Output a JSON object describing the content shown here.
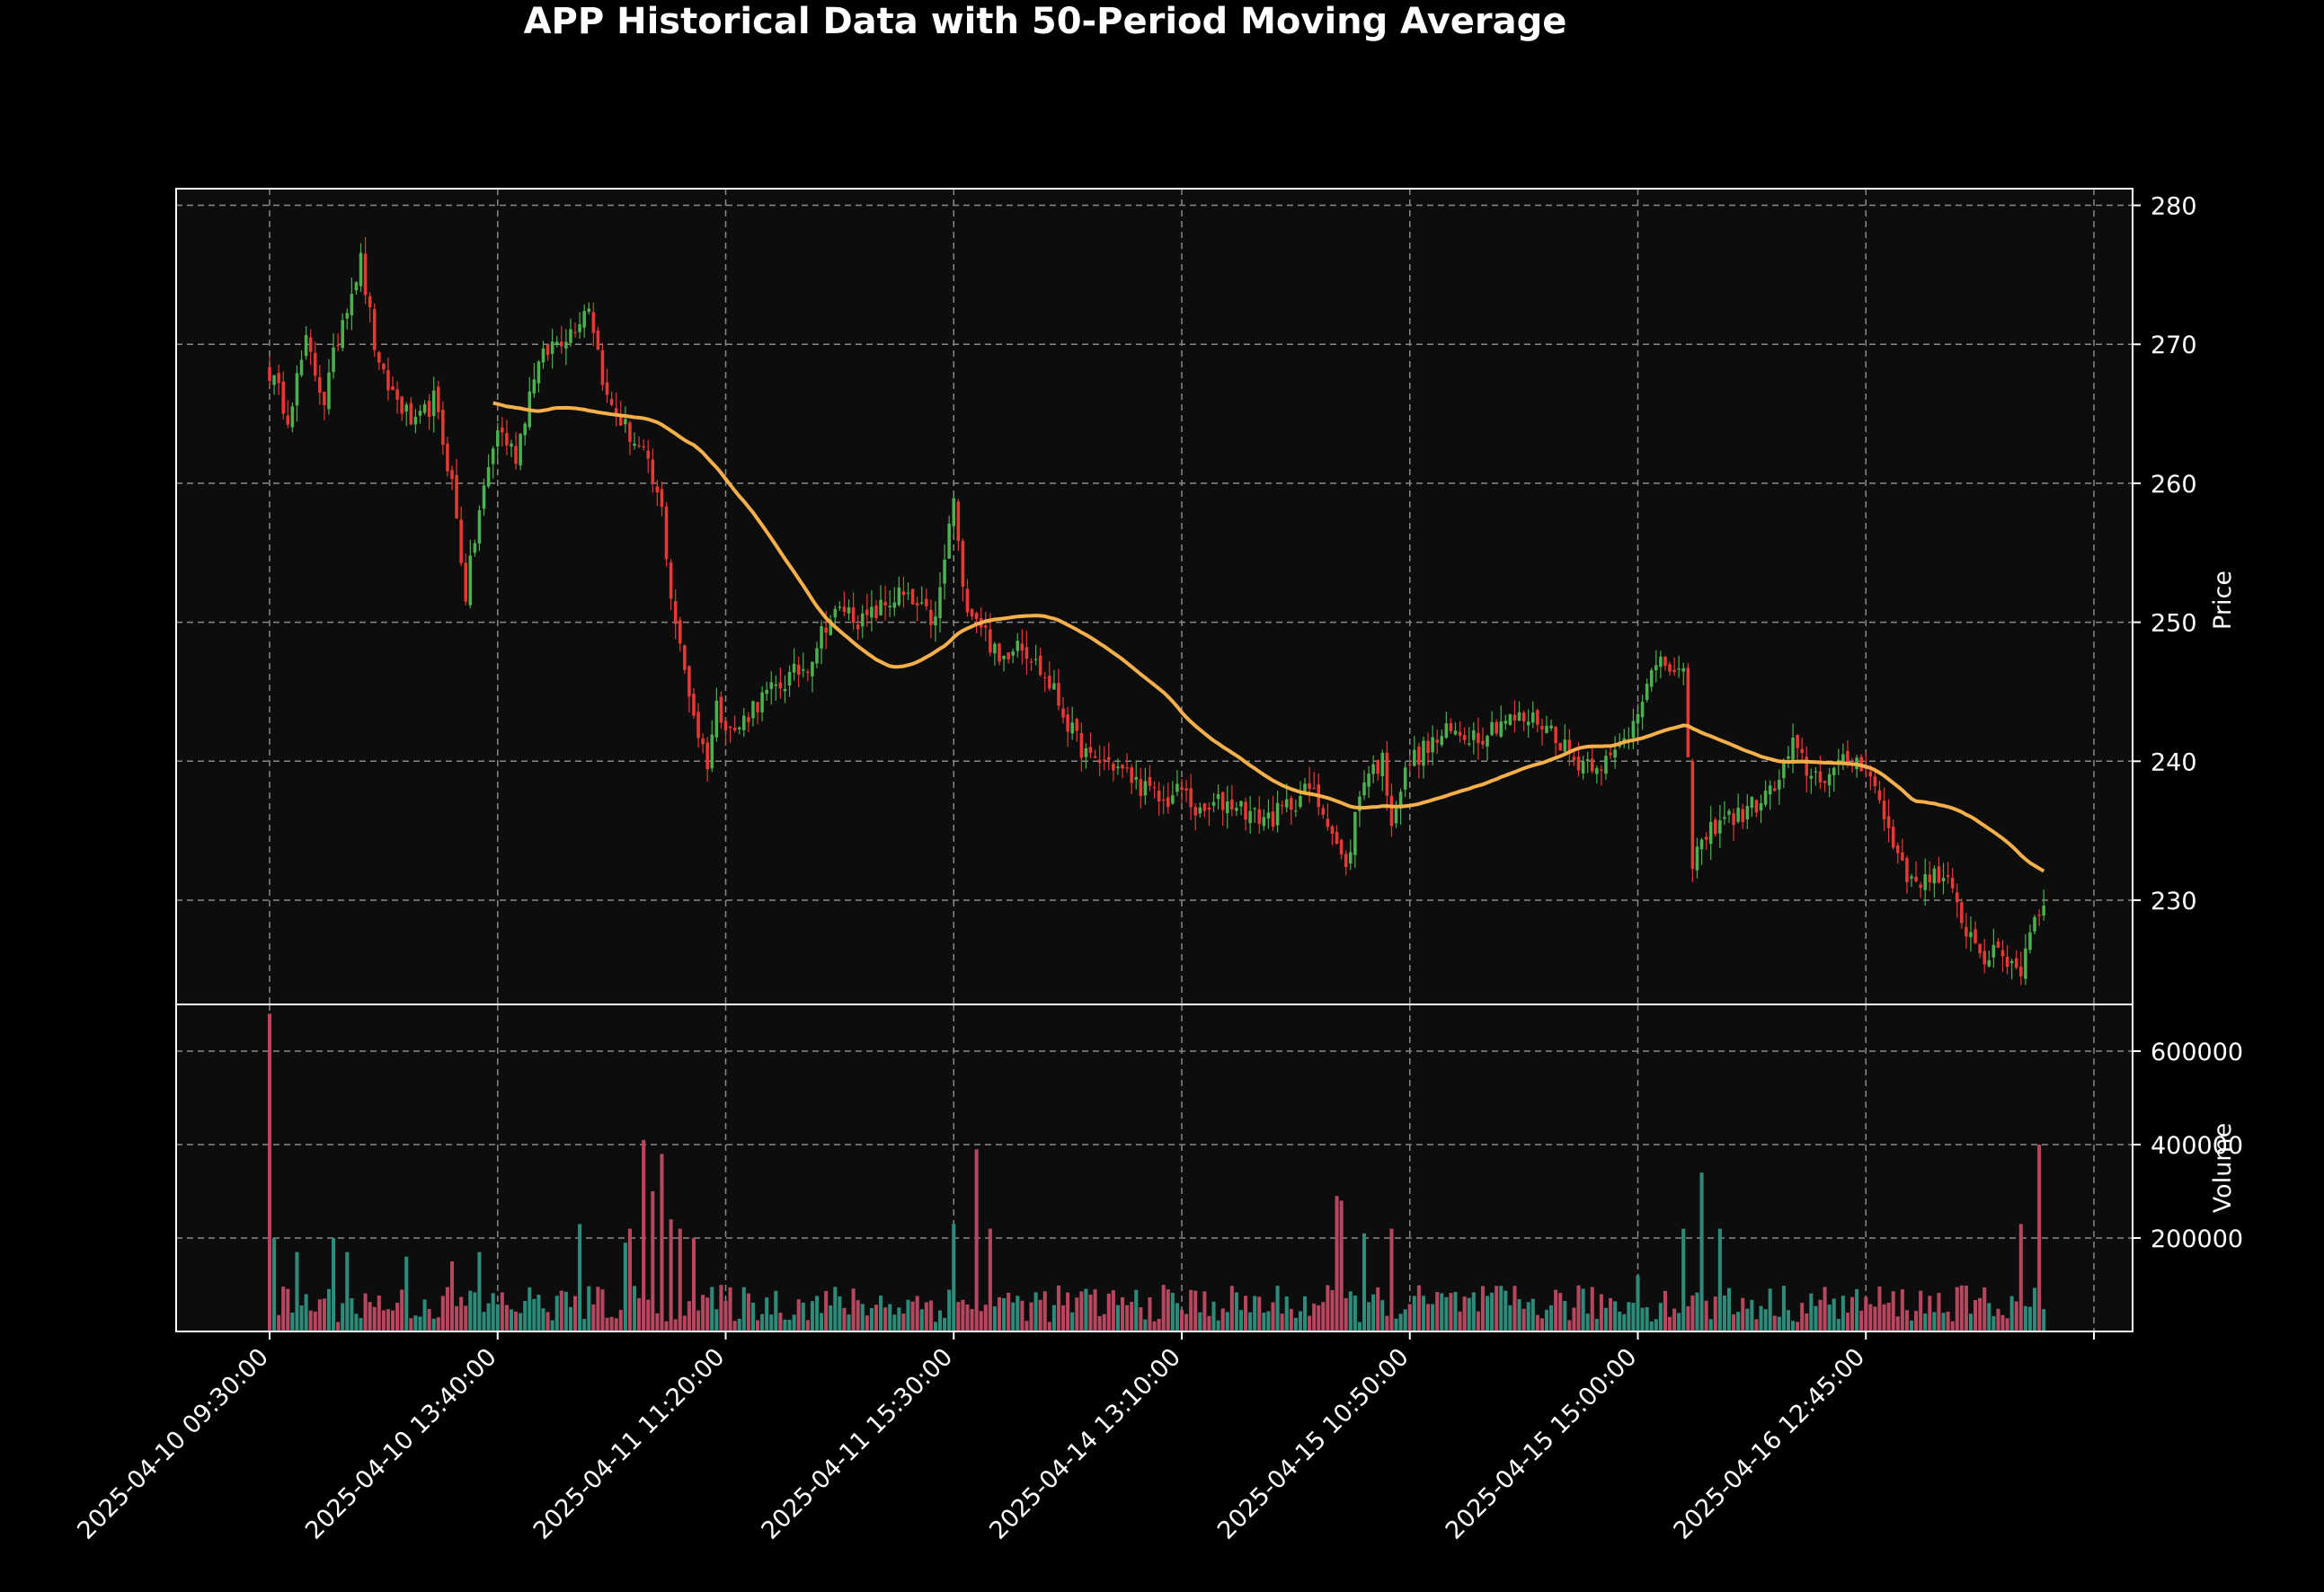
{
  "colors": {
    "background": "#000000",
    "panel": "#0d0d0d",
    "grid": "#888888",
    "axis": "#ffffff",
    "up": "#4caf50",
    "down": "#e53935",
    "ma": "#f5b04b",
    "volume_up": "#2e8b7a",
    "volume_down": "#b5485e"
  },
  "chart_data": {
    "type": "candlestick",
    "title": "APP Historical Data with 50-Period Moving Average",
    "price_panel": {
      "ylabel": "Price",
      "ylim": [
        222.5,
        281.2
      ],
      "yticks": [
        230,
        240,
        250,
        260,
        270,
        280
      ],
      "grid": true
    },
    "volume_panel": {
      "ylabel": "Volume",
      "ylim": [
        0,
        700000
      ],
      "yticks": [
        200000,
        400000,
        600000
      ],
      "tick_labels": [
        "200000",
        "400000",
        "600000"
      ],
      "grid": true
    },
    "x_tick_labels": [
      "2025-04-10 09:30:00",
      "2025-04-10 13:40:00",
      "2025-04-11 11:20:00",
      "2025-04-11 15:30:00",
      "2025-04-14 13:10:00",
      "2025-04-15 10:50:00",
      "2025-04-15 15:00:00",
      "2025-04-16 12:45:00"
    ],
    "x_tick_bar_index": [
      0,
      50,
      100,
      150,
      200,
      250,
      300,
      350
    ],
    "bar_count": 390,
    "close_anchors": [
      [
        0,
        268
      ],
      [
        4,
        265
      ],
      [
        8,
        270
      ],
      [
        12,
        266
      ],
      [
        16,
        272
      ],
      [
        20,
        276
      ],
      [
        24,
        268
      ],
      [
        28,
        266
      ],
      [
        32,
        264
      ],
      [
        36,
        266
      ],
      [
        40,
        260
      ],
      [
        43,
        252
      ],
      [
        46,
        258
      ],
      [
        50,
        264
      ],
      [
        54,
        262
      ],
      [
        58,
        268
      ],
      [
        62,
        270
      ],
      [
        66,
        271
      ],
      [
        70,
        273
      ],
      [
        74,
        266
      ],
      [
        78,
        264
      ],
      [
        82,
        262
      ],
      [
        86,
        258
      ],
      [
        88,
        252
      ],
      [
        90,
        248
      ],
      [
        94,
        242
      ],
      [
        96,
        240
      ],
      [
        98,
        244
      ],
      [
        102,
        242
      ],
      [
        106,
        244
      ],
      [
        110,
        245
      ],
      [
        114,
        246
      ],
      [
        118,
        247
      ],
      [
        122,
        250
      ],
      [
        126,
        251
      ],
      [
        130,
        250
      ],
      [
        134,
        251
      ],
      [
        138,
        252
      ],
      [
        142,
        251
      ],
      [
        146,
        250
      ],
      [
        150,
        259
      ],
      [
        152,
        252
      ],
      [
        156,
        250
      ],
      [
        160,
        247
      ],
      [
        164,
        249
      ],
      [
        168,
        247
      ],
      [
        172,
        245
      ],
      [
        176,
        242
      ],
      [
        180,
        240
      ],
      [
        184,
        240
      ],
      [
        188,
        239
      ],
      [
        192,
        238
      ],
      [
        196,
        237
      ],
      [
        200,
        238
      ],
      [
        204,
        236
      ],
      [
        208,
        237
      ],
      [
        212,
        237
      ],
      [
        216,
        236
      ],
      [
        220,
        236
      ],
      [
        224,
        237
      ],
      [
        228,
        238
      ],
      [
        232,
        236
      ],
      [
        236,
        232
      ],
      [
        238,
        236
      ],
      [
        240,
        239
      ],
      [
        244,
        240
      ],
      [
        246,
        236
      ],
      [
        250,
        240
      ],
      [
        254,
        241
      ],
      [
        258,
        242
      ],
      [
        262,
        242
      ],
      [
        266,
        242
      ],
      [
        270,
        243
      ],
      [
        274,
        243
      ],
      [
        278,
        243
      ],
      [
        282,
        242
      ],
      [
        286,
        240
      ],
      [
        290,
        240
      ],
      [
        294,
        240
      ],
      [
        298,
        242
      ],
      [
        302,
        246
      ],
      [
        306,
        247
      ],
      [
        310,
        246
      ],
      [
        312,
        233
      ],
      [
        314,
        234
      ],
      [
        318,
        236
      ],
      [
        322,
        236
      ],
      [
        326,
        237
      ],
      [
        330,
        238
      ],
      [
        334,
        241
      ],
      [
        338,
        239
      ],
      [
        342,
        239
      ],
      [
        346,
        240
      ],
      [
        350,
        240
      ],
      [
        354,
        236
      ],
      [
        356,
        234
      ],
      [
        358,
        233
      ],
      [
        360,
        231
      ],
      [
        364,
        232
      ],
      [
        368,
        231
      ],
      [
        372,
        228
      ],
      [
        376,
        226
      ],
      [
        380,
        226
      ],
      [
        384,
        225
      ],
      [
        386,
        228
      ],
      [
        389,
        230
      ]
    ],
    "volume_spikes": [
      [
        0,
        680000
      ],
      [
        1,
        200000
      ],
      [
        6,
        170000
      ],
      [
        14,
        200000
      ],
      [
        17,
        170000
      ],
      [
        30,
        160000
      ],
      [
        40,
        150000
      ],
      [
        46,
        170000
      ],
      [
        68,
        230000
      ],
      [
        78,
        190000
      ],
      [
        79,
        220000
      ],
      [
        82,
        410000
      ],
      [
        84,
        300000
      ],
      [
        86,
        380000
      ],
      [
        88,
        240000
      ],
      [
        90,
        220000
      ],
      [
        93,
        200000
      ],
      [
        150,
        230000
      ],
      [
        155,
        390000
      ],
      [
        158,
        220000
      ],
      [
        234,
        290000
      ],
      [
        235,
        280000
      ],
      [
        240,
        210000
      ],
      [
        246,
        220000
      ],
      [
        300,
        120000
      ],
      [
        310,
        220000
      ],
      [
        314,
        340000
      ],
      [
        318,
        220000
      ],
      [
        384,
        230000
      ],
      [
        388,
        400000
      ]
    ],
    "ma_period": 50
  }
}
